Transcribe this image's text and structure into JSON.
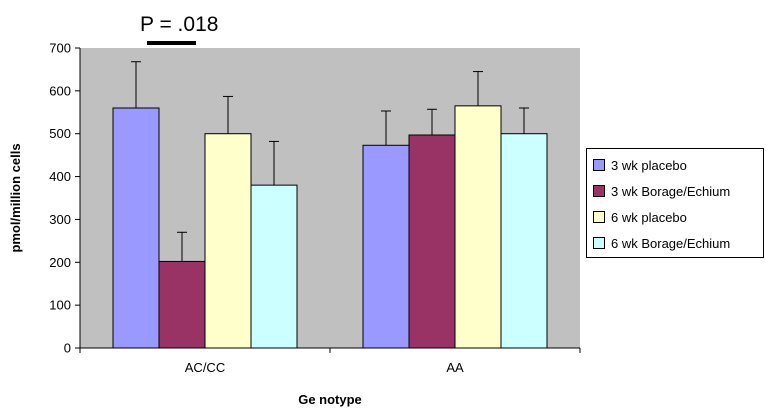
{
  "chart_data": {
    "type": "bar",
    "title": "",
    "xlabel": "Ge notype",
    "ylabel": "pmol/million cells",
    "ylim": [
      0,
      700
    ],
    "yticks": [
      "0",
      "100",
      "200",
      "300",
      "400",
      "500",
      "600",
      "700"
    ],
    "categories": [
      "AC/CC",
      "AA"
    ],
    "series": [
      {
        "name": "3 wk placebo",
        "values": [
          560,
          473
        ],
        "errors": [
          108,
          80
        ],
        "color": "#9999ff"
      },
      {
        "name": "3 wk Borage/Echium",
        "values": [
          202,
          497
        ],
        "errors": [
          68,
          60
        ],
        "color": "#993366"
      },
      {
        "name": "6 wk placebo",
        "values": [
          500,
          565
        ],
        "errors": [
          87,
          80
        ],
        "color": "#ffffcc"
      },
      {
        "name": "6 wk Borage/Echium",
        "values": [
          380,
          500
        ],
        "errors": [
          102,
          60
        ],
        "color": "#ccffff"
      }
    ],
    "annotation": "P = .018",
    "grid": false,
    "legend_position": "right",
    "plot_background": "#c0c0c0"
  }
}
